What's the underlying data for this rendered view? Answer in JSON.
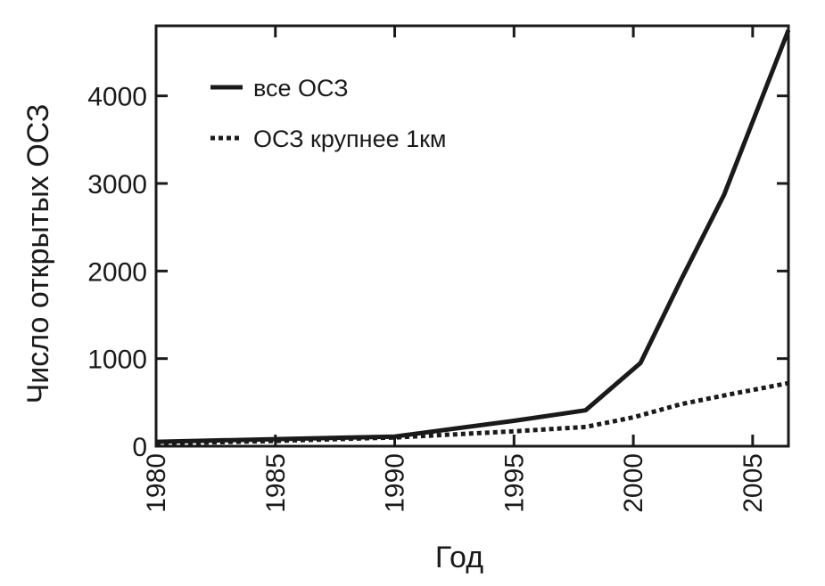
{
  "chart_data": {
    "type": "line",
    "title": "",
    "xlabel": "Год",
    "ylabel": "Число открытых ОСЗ",
    "xlim": [
      1980,
      2006.5
    ],
    "ylim": [
      0,
      4800
    ],
    "x_ticks": [
      1980,
      1985,
      1990,
      1995,
      2000,
      2005
    ],
    "y_ticks": [
      0,
      1000,
      2000,
      3000,
      4000
    ],
    "grid": false,
    "legend_position": "top-left",
    "series": [
      {
        "name": "все ОСЗ",
        "style": "solid",
        "color": "#1a1a1a",
        "points": [
          [
            1980,
            50
          ],
          [
            1985,
            80
          ],
          [
            1990,
            110
          ],
          [
            1995,
            290
          ],
          [
            1998,
            410
          ],
          [
            2000.3,
            950
          ],
          [
            2002,
            1900
          ],
          [
            2003.8,
            2870
          ],
          [
            2006.5,
            4750
          ]
        ]
      },
      {
        "name": "ОСЗ крупнее 1км",
        "style": "dotted",
        "color": "#1a1a1a",
        "points": [
          [
            1980,
            30
          ],
          [
            1985,
            60
          ],
          [
            1990,
            100
          ],
          [
            1995,
            170
          ],
          [
            1998,
            220
          ],
          [
            2000,
            330
          ],
          [
            2002,
            480
          ],
          [
            2004,
            590
          ],
          [
            2006.5,
            720
          ]
        ]
      }
    ]
  }
}
